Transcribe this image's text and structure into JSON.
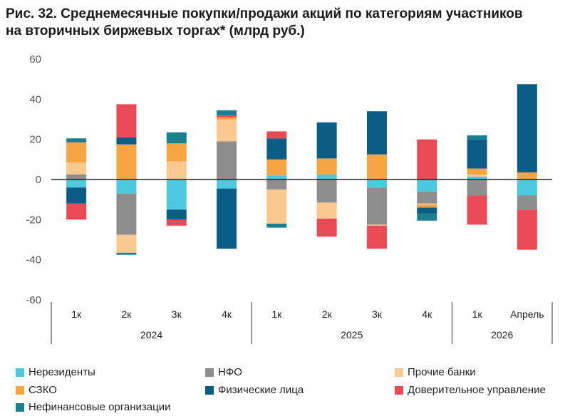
{
  "title_line1": "Рис. 32. Среднемесячные покупки/продажи акций по категориям участников",
  "title_line2": "на вторичных биржевых торгах* (млрд руб.)",
  "chart_data": {
    "type": "bar",
    "stacked": true,
    "ylim": [
      -60,
      60
    ],
    "yticks": [
      60,
      40,
      20,
      0,
      -20,
      -40,
      -60
    ],
    "categories": [
      "1к",
      "2к",
      "3к",
      "4к",
      "1к",
      "2к",
      "3к",
      "4к",
      "1к",
      "Апрель"
    ],
    "groups": [
      {
        "label": "2024",
        "count": 4
      },
      {
        "label": "2025",
        "count": 4
      },
      {
        "label": "2026",
        "count": 2
      }
    ],
    "series": [
      {
        "name": "Нерезиденты",
        "color": "#4dc9df",
        "values": [
          [
            -4,
            0
          ],
          [
            -7,
            0
          ],
          [
            -15,
            0
          ],
          [
            -4.5,
            0
          ],
          [
            0,
            2
          ],
          [
            0,
            2.5
          ],
          [
            -4,
            0
          ],
          [
            -6,
            0
          ],
          [
            0,
            1.5
          ],
          [
            -8,
            0
          ]
        ]
      },
      {
        "name": "НФО",
        "color": "#8d8d8d",
        "values": [
          [
            0,
            2.5
          ],
          [
            -20.5,
            0
          ],
          [
            0,
            0
          ],
          [
            0,
            19
          ],
          [
            -5,
            0
          ],
          [
            -11.5,
            0
          ],
          [
            -18.5,
            0
          ],
          [
            -6,
            0
          ],
          [
            -8,
            0
          ],
          [
            -7,
            0
          ]
        ]
      },
      {
        "name": "Прочие банки",
        "color": "#f9c990",
        "values": [
          [
            0,
            6
          ],
          [
            -9,
            0
          ],
          [
            0,
            9
          ],
          [
            0,
            11
          ],
          [
            -17,
            0
          ],
          [
            -8,
            0
          ],
          [
            -0.5,
            0
          ],
          [
            -0.5,
            0
          ],
          [
            0,
            1
          ],
          [
            0,
            0
          ]
        ]
      },
      {
        "name": "СЗКО",
        "color": "#f7a443",
        "values": [
          [
            0,
            10
          ],
          [
            0,
            17.5
          ],
          [
            0,
            9
          ],
          [
            0,
            1
          ],
          [
            0,
            8
          ],
          [
            0,
            8
          ],
          [
            0,
            12.5
          ],
          [
            -1.5,
            0
          ],
          [
            0,
            3
          ],
          [
            0,
            3.5
          ]
        ]
      },
      {
        "name": "Физические лица",
        "color": "#0c5d86",
        "values": [
          [
            -8,
            0
          ],
          [
            0,
            3.5
          ],
          [
            -5,
            0
          ],
          [
            -30,
            0
          ],
          [
            0,
            10.5
          ],
          [
            0,
            18
          ],
          [
            0,
            21.5
          ],
          [
            -3,
            0
          ],
          [
            0,
            14.5
          ],
          [
            0,
            44
          ]
        ]
      },
      {
        "name": "Доверительное управление",
        "color": "#ea4a56",
        "values": [
          [
            -8,
            0
          ],
          [
            0,
            16.5
          ],
          [
            -3,
            0
          ],
          [
            0,
            1
          ],
          [
            0,
            3.5
          ],
          [
            -9,
            0
          ],
          [
            -11.5,
            0
          ],
          [
            0,
            20
          ],
          [
            -14.5,
            0
          ],
          [
            -20,
            0
          ]
        ]
      },
      {
        "name": "Нефинансовые организации",
        "color": "#1b7f90",
        "values": [
          [
            0,
            2
          ],
          [
            -1,
            0
          ],
          [
            0,
            5.5
          ],
          [
            0,
            2.5
          ],
          [
            -2,
            0
          ],
          [
            0,
            0
          ],
          [
            0,
            0
          ],
          [
            -3.5,
            0
          ],
          [
            0,
            2
          ],
          [
            0,
            0
          ]
        ]
      }
    ]
  },
  "legend": [
    {
      "name": "Нерезиденты",
      "color": "#4dc9df"
    },
    {
      "name": "НФО",
      "color": "#8d8d8d"
    },
    {
      "name": "Прочие банки",
      "color": "#f9c990"
    },
    {
      "name": "СЗКО",
      "color": "#f7a443"
    },
    {
      "name": "Физические лица",
      "color": "#0c5d86"
    },
    {
      "name": "Доверительное управление",
      "color": "#ea4a56"
    },
    {
      "name": "Нефинансовые организации",
      "color": "#1b7f90"
    }
  ]
}
